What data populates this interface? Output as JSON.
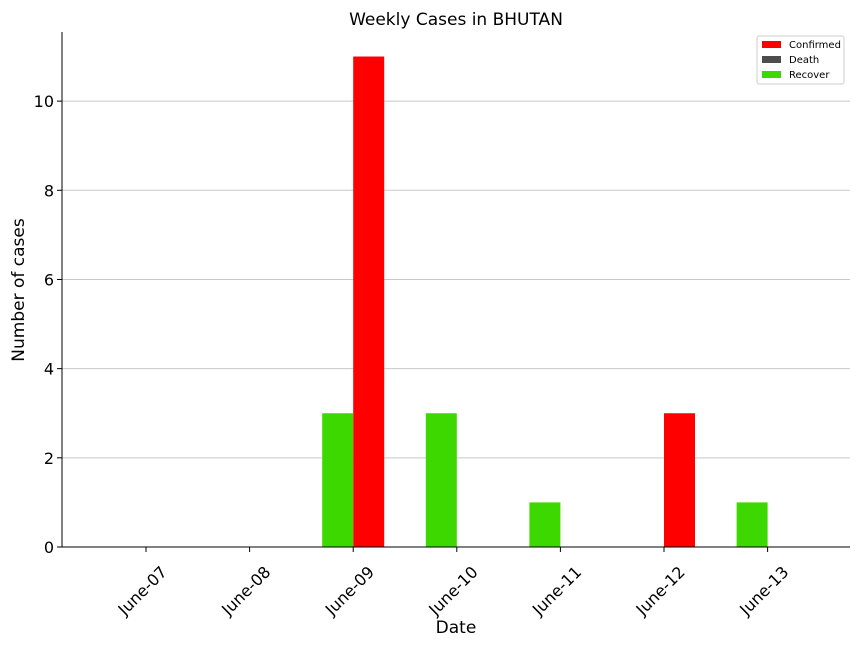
{
  "chart_data": {
    "type": "bar",
    "title": "Weekly Cases in BHUTAN",
    "xlabel": "Date",
    "ylabel": "Number of cases",
    "categories": [
      "June-07",
      "June-08",
      "June-09",
      "June-10",
      "June-11",
      "June-12",
      "June-13"
    ],
    "series": [
      {
        "name": "Confirmed",
        "color": "#ff0000",
        "values": [
          0,
          0,
          11,
          0,
          0,
          3,
          0
        ]
      },
      {
        "name": "Death",
        "color": "#4d4d4d",
        "values": [
          0,
          0,
          0,
          0,
          0,
          0,
          0
        ]
      },
      {
        "name": "Recover",
        "color": "#3dd800",
        "values": [
          0,
          0,
          3,
          3,
          1,
          0,
          1
        ]
      }
    ],
    "ylim": [
      0,
      11.55
    ],
    "yticks": [
      0,
      2,
      4,
      6,
      8,
      10
    ],
    "grid": "horizontal",
    "legend": "top-right"
  }
}
